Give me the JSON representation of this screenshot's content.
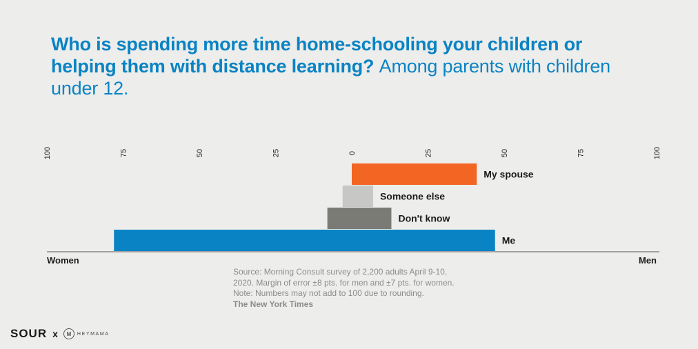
{
  "title": {
    "bold": "Who is spending more time home-schooling your children or helping them with distance learning?",
    "normal": "Among parents with children under 12."
  },
  "chart_data": {
    "type": "bar",
    "orientation": "horizontal-diverging",
    "axis_ticks": [
      "100",
      "75",
      "50",
      "25",
      "0",
      "25",
      "50",
      "75",
      "100"
    ],
    "tick_values": [
      -100,
      -75,
      -50,
      -25,
      0,
      25,
      50,
      75,
      100
    ],
    "xlim": [
      -100,
      100
    ],
    "left_label": "Women",
    "right_label": "Men",
    "grid": false,
    "categories": [
      {
        "name": "My spouse",
        "women": 0,
        "men": 41,
        "color": "#f26522"
      },
      {
        "name": "Someone else",
        "women": 3,
        "men": 7,
        "color": "#c7c7c5"
      },
      {
        "name": "Don't know",
        "women": 8,
        "men": 13,
        "color": "#7b7b75"
      },
      {
        "name": "Me",
        "women": 78,
        "men": 47,
        "color": "#0a83c4"
      }
    ]
  },
  "source": {
    "line1": "Source: Morning Consult survey of 2,200 adults April 9-10,",
    "line2": "2020. Margin of error ±8 pts. for men and ±7 pts. for women.",
    "line3": "Note: Numbers may not add to 100 due to rounding.",
    "credit": "The New York Times"
  },
  "footer": {
    "brand": "SOUR",
    "separator": "x",
    "logo_mark": "M",
    "partner": "HEYMAMA"
  }
}
